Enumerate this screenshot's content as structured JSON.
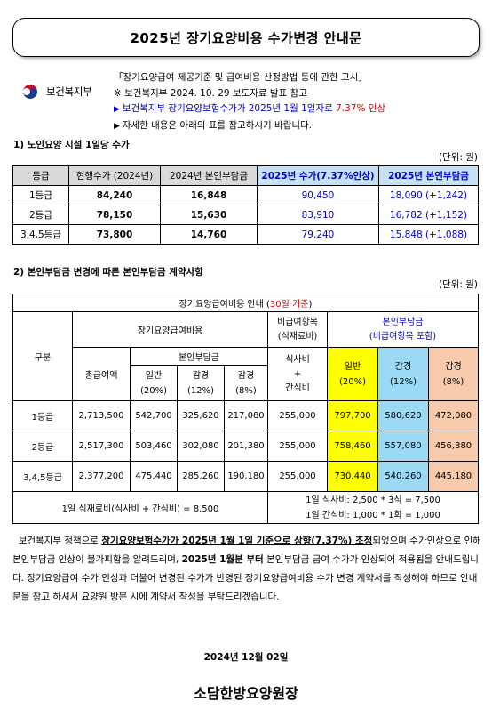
{
  "title": "2025년 장기요양비용 수가변경 안내문",
  "logo": {
    "text": "보건복지부"
  },
  "notice": {
    "line1": "「장기요양급여 제공기준 및 급여비용 산정방법 등에 관한 고시」",
    "line2": "※ 보건복지부 2024. 10. 29 보도자료 발표 참고",
    "line3_a": "보건복지부 장기요양보험수가가 2025년 1월 1일자로 ",
    "line3_b": "7.37% 인상",
    "line4": "자세한 내용은 아래의 표를 참고하시기 바랍니다."
  },
  "section1": {
    "title": "1) 노인요양 시설 1일당 수가",
    "unit": "(단위: 원)",
    "headers": [
      "등급",
      "현행수가 (2024년)",
      "2024년 본인부담금",
      "2025년 수가(7.37%인상)",
      "2025년 본인부담금"
    ],
    "rows": [
      [
        "1등급",
        "84,240",
        "16,848",
        "90,450",
        "18,090 (+1,242)"
      ],
      [
        "2등급",
        "78,150",
        "15,630",
        "83,910",
        "16,782 (+1,152)"
      ],
      [
        "3,4,5등급",
        "73,800",
        "14,760",
        "79,240",
        "15,848 (+1,088)"
      ]
    ]
  },
  "section2": {
    "title": "2) 본인부담금 변경에 따른 본인부담금 계약사항",
    "unit": "(단위: 원)",
    "table_title_a": "장기요양급여비용 안내 (",
    "table_title_b": "30일 기준",
    "table_title_c": ")",
    "h_gubun": "구분",
    "h_ltc": "장기요양급여비용",
    "h_nonbenefit": "비급여항목\n(식재료비)",
    "h_self": "본인부담금\n(비급여항목 포함)",
    "h_total": "총급여액",
    "h_selfpay": "본인부담금",
    "h_meal": "식사비\n+\n간식비",
    "h_general": "일반\n(20%)",
    "h_red12": "감경\n(12%)",
    "h_red8": "감경\n(8%)",
    "rows": [
      [
        "1등급",
        "2,713,500",
        "542,700",
        "325,620",
        "217,080",
        "255,000",
        "797,700",
        "580,620",
        "472,080"
      ],
      [
        "2등급",
        "2,517,300",
        "503,460",
        "302,080",
        "201,380",
        "255,000",
        "758,460",
        "557,080",
        "456,380"
      ],
      [
        "3,4,5등급",
        "2,377,200",
        "475,440",
        "285,260",
        "190,180",
        "255,000",
        "730,440",
        "540,260",
        "445,180"
      ]
    ],
    "footer_left": "1일 식재료비(식사비 + 간식비) = 8,500",
    "footer_right1": "1일 식사비: 2,500 * 3식 = 7,500",
    "footer_right2": "1일 간식비: 1,000 * 1회 = 1,000"
  },
  "body": {
    "p1": "보건복지부 정책으로 ",
    "p2": "장기요양보험수가가 2025년 1월 1일 기준으로 상향(7.37%) 조정",
    "p3": "되었으며 수가인상으로 인해 본인부담금 인상이 불가피함을 알려드리며, ",
    "p4": "2025년 1월분 부터",
    "p5": " 본인부담금 급여 수가가 인상되어 적용됨을 안내드립니다. 장기요양급여 수가 인상과 더불어 변경된 수가가 반영된 장기요양급여비용 수가 변경 계약서를 작성해야 하므로 안내문을 참고 하셔서 요양원 방문 시에 계약서 작성을 부탁드리겠습니다."
  },
  "date": "2024년  12월  02일",
  "org": "소담한방요양원장",
  "colors": {
    "blue": "#0000cc",
    "red": "#e00000",
    "yellow": "#ffff00",
    "cyan": "#9cd9f5",
    "orange": "#f8cbad",
    "gray": "#d9d9d9"
  }
}
